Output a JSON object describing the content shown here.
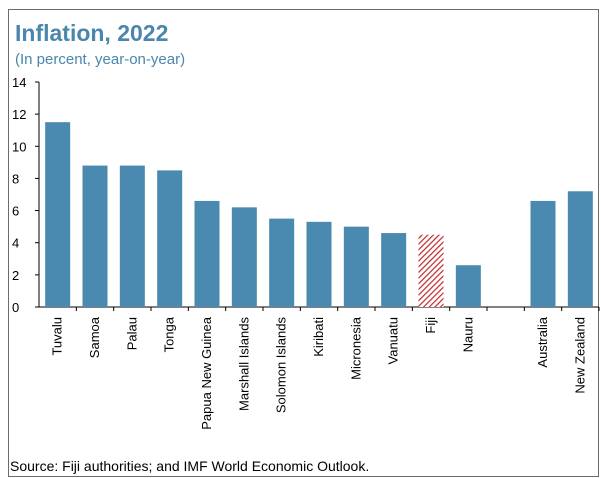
{
  "header": {
    "title": "Inflation, 2022",
    "subtitle": "(In percent, year-on-year)"
  },
  "footer": {
    "source": "Source: Fiji authorities; and IMF World Economic Outlook."
  },
  "colors": {
    "bar": "#4a8ab0",
    "highlight": "#c0272d",
    "title": "#4a86ad"
  },
  "chart_data": {
    "type": "bar",
    "title": "Inflation, 2022",
    "subtitle": "(In percent, year-on-year)",
    "xlabel": "",
    "ylabel": "",
    "ylim": [
      0,
      14
    ],
    "yticks": [
      0,
      2,
      4,
      6,
      8,
      10,
      12,
      14
    ],
    "grid": false,
    "legend": "none",
    "categories": [
      "Tuvalu",
      "Samoa",
      "Palau",
      "Tonga",
      "Papua New Guinea",
      "Marshall Islands",
      "Solomon Islands",
      "Kiribati",
      "Micronesia",
      "Vanuatu",
      "Fiji",
      "Nauru",
      "",
      "Australia",
      "New Zealand"
    ],
    "values": [
      11.5,
      8.8,
      8.8,
      8.5,
      6.6,
      6.2,
      5.5,
      5.3,
      5.0,
      4.6,
      4.5,
      2.6,
      null,
      6.6,
      7.2
    ],
    "highlight": [
      "Fiji"
    ]
  }
}
